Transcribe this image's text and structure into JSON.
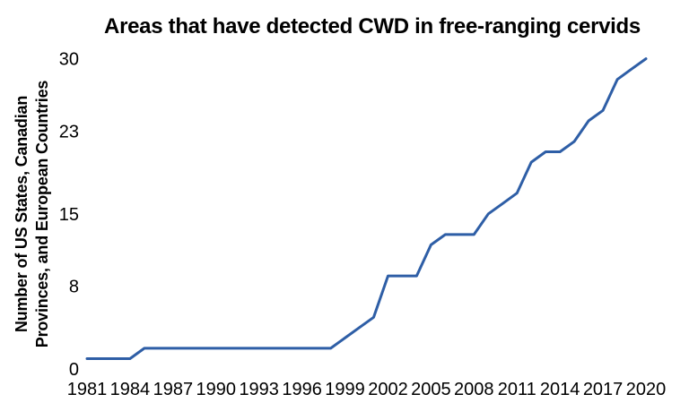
{
  "chart_data": {
    "type": "line",
    "title": "Areas that have detected CWD in free-ranging cervids",
    "ylabel": "Number of US States, Canadian Provinces, and European Countries",
    "xlabel": "",
    "x": [
      1981,
      1982,
      1983,
      1984,
      1985,
      1986,
      1987,
      1988,
      1989,
      1990,
      1991,
      1992,
      1993,
      1994,
      1995,
      1996,
      1997,
      1998,
      1999,
      2000,
      2001,
      2002,
      2003,
      2004,
      2005,
      2006,
      2007,
      2008,
      2009,
      2010,
      2011,
      2012,
      2013,
      2014,
      2015,
      2016,
      2017,
      2018,
      2019,
      2020
    ],
    "values": [
      1,
      1,
      1,
      1,
      2,
      2,
      2,
      2,
      2,
      2,
      2,
      2,
      2,
      2,
      2,
      2,
      2,
      2,
      3,
      4,
      5,
      9,
      9,
      9,
      12,
      13,
      13,
      13,
      15,
      16,
      17,
      20,
      21,
      21,
      22,
      24,
      25,
      28,
      29,
      30
    ],
    "xticks": [
      1981,
      1984,
      1987,
      1990,
      1993,
      1996,
      1999,
      2002,
      2005,
      2008,
      2011,
      2014,
      2017,
      2020
    ],
    "yticks": [
      0,
      8,
      15,
      23,
      30
    ],
    "xlim": [
      1981,
      2020
    ],
    "ylim": [
      0,
      30
    ],
    "grid": false,
    "legend": false,
    "axis_spines": false,
    "line_color": "#2e5ea6",
    "text_color": "#000000",
    "background_color": "#ffffff"
  }
}
